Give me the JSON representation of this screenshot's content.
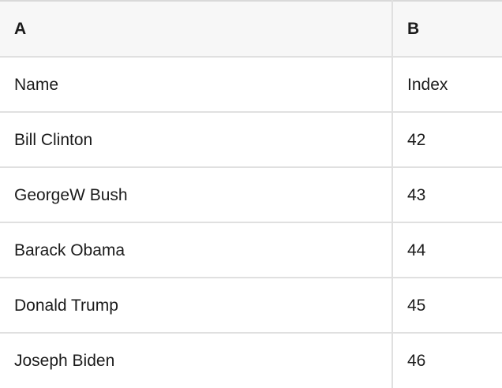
{
  "table": {
    "column_headers": [
      {
        "label": "A"
      },
      {
        "label": "B"
      }
    ],
    "rows": [
      {
        "cells": [
          "Name",
          "Index"
        ]
      },
      {
        "cells": [
          "Bill Clinton",
          "42"
        ]
      },
      {
        "cells": [
          "GeorgeW Bush",
          "43"
        ]
      },
      {
        "cells": [
          "Barack Obama",
          "44"
        ]
      },
      {
        "cells": [
          "Donald Trump",
          "45"
        ]
      },
      {
        "cells": [
          "Joseph Biden",
          "46"
        ]
      }
    ]
  },
  "colors": {
    "header_bg": "#f7f7f7",
    "border": "#e0e0e0",
    "top_border": "#d9d9d9",
    "text": "#1b1b1b"
  }
}
